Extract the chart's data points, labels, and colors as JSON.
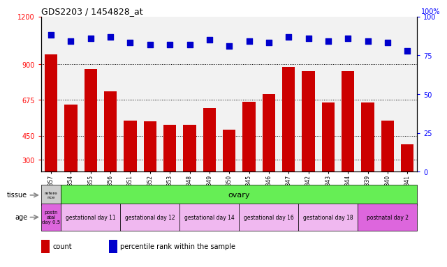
{
  "title": "GDS2203 / 1454828_at",
  "samples": [
    "GSM120857",
    "GSM120854",
    "GSM120855",
    "GSM120856",
    "GSM120851",
    "GSM120852",
    "GSM120853",
    "GSM120848",
    "GSM120849",
    "GSM120850",
    "GSM120845",
    "GSM120846",
    "GSM120847",
    "GSM120842",
    "GSM120843",
    "GSM120844",
    "GSM120839",
    "GSM120840",
    "GSM120841"
  ],
  "counts": [
    960,
    645,
    870,
    730,
    545,
    540,
    520,
    520,
    625,
    490,
    665,
    710,
    885,
    855,
    660,
    855,
    660,
    545,
    395
  ],
  "percentiles": [
    88,
    84,
    86,
    87,
    83,
    82,
    82,
    82,
    85,
    81,
    84,
    83,
    87,
    86,
    84,
    86,
    84,
    83,
    78
  ],
  "ylim_left": [
    225,
    1200
  ],
  "ylim_right": [
    0,
    100
  ],
  "yticks_left": [
    300,
    450,
    675,
    900,
    1200
  ],
  "yticks_right": [
    0,
    25,
    50,
    75,
    100
  ],
  "bar_color": "#cc0000",
  "dot_color": "#0000cc",
  "grid_lines": [
    300,
    450,
    675,
    900
  ],
  "bg_color": "#f2f2f2",
  "tissue_ref_color": "#cccccc",
  "tissue_ovary_color": "#66ee55",
  "age_colors": [
    "#dd66dd",
    "#f0b8f0",
    "#f0b8f0",
    "#f0b8f0",
    "#f0b8f0",
    "#f0b8f0",
    "#dd66dd"
  ],
  "age_labels": [
    "postn\natal\nday 0.5",
    "gestational day 11",
    "gestational day 12",
    "gestational day 14",
    "gestational day 16",
    "gestational day 18",
    "postnatal day 2"
  ],
  "age_spans": [
    1,
    3,
    3,
    3,
    3,
    3,
    3
  ],
  "dot_size": 40,
  "bar_width": 0.65,
  "bar_bottom": 225
}
